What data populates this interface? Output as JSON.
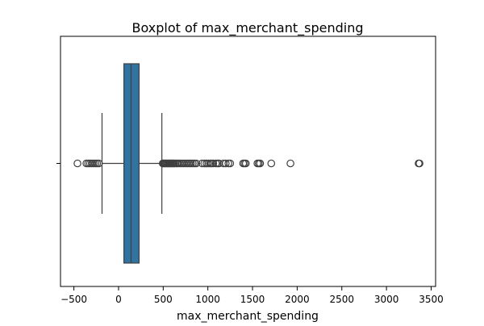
{
  "chart_data": {
    "type": "boxplot",
    "title": "Boxplot of max_merchant_spending",
    "xlabel": "max_merchant_spending",
    "ylabel": "",
    "xlim": [
      -650,
      3550
    ],
    "xticks": [
      -500,
      0,
      500,
      1000,
      1500,
      2000,
      2500,
      3000,
      3500
    ],
    "xtick_labels": [
      "−500",
      "0",
      "500",
      "1000",
      "1500",
      "2000",
      "2500",
      "3000",
      "3500"
    ],
    "grid": false,
    "box": {
      "color": "#3274a1",
      "q1": 60,
      "median": 140,
      "q3": 230,
      "whisker_low": -185,
      "whisker_high": 485
    },
    "outliers": [
      -460,
      -360,
      -340,
      -320,
      -300,
      -280,
      -260,
      -240,
      -220,
      495,
      505,
      515,
      525,
      535,
      545,
      555,
      565,
      575,
      585,
      595,
      605,
      615,
      625,
      640,
      655,
      670,
      690,
      710,
      730,
      750,
      770,
      790,
      810,
      830,
      850,
      870,
      935,
      960,
      985,
      1005,
      1025,
      1040,
      1060,
      1090,
      1110,
      1125,
      1175,
      1200,
      1230,
      1250,
      1395,
      1410,
      1425,
      1555,
      1570,
      1585,
      1710,
      1925,
      3360,
      3370
    ]
  }
}
